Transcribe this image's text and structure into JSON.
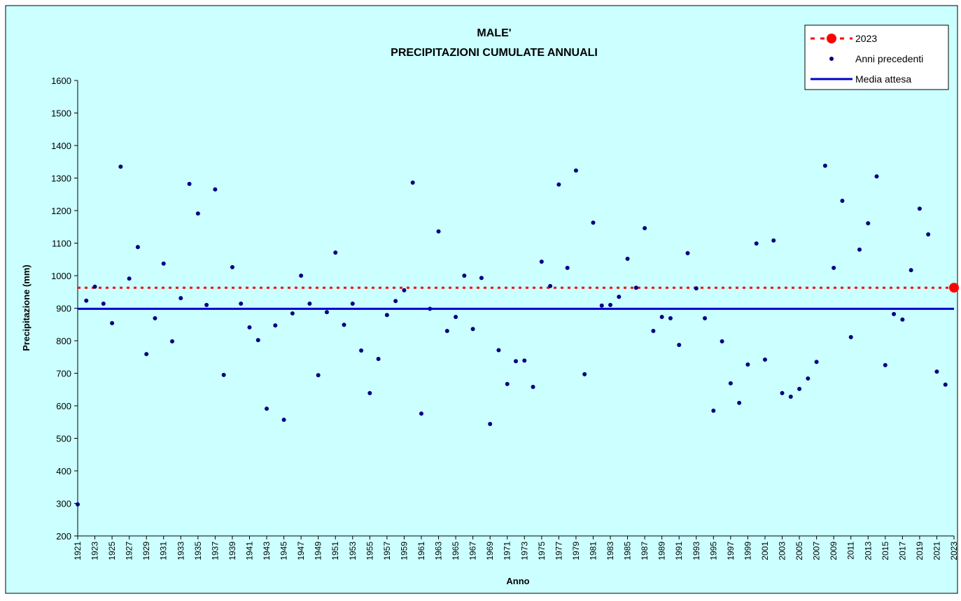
{
  "chart_data": {
    "type": "scatter",
    "title": [
      "MALE'",
      "PRECIPITAZIONI CUMULATE ANNUALI"
    ],
    "x_label": "Anno",
    "y_label": "Precipitazione (mm)",
    "xlim": [
      1921,
      2023
    ],
    "ylim": [
      200,
      1600
    ],
    "xticks": [
      1921,
      1923,
      1925,
      1927,
      1929,
      1931,
      1933,
      1935,
      1937,
      1939,
      1941,
      1943,
      1945,
      1947,
      1949,
      1951,
      1953,
      1955,
      1957,
      1959,
      1961,
      1963,
      1965,
      1967,
      1969,
      1971,
      1973,
      1975,
      1977,
      1979,
      1981,
      1983,
      1985,
      1987,
      1989,
      1991,
      1993,
      1995,
      1997,
      1999,
      2001,
      2003,
      2005,
      2007,
      2009,
      2011,
      2013,
      2015,
      2017,
      2019,
      2021,
      2023
    ],
    "yticks": [
      200,
      300,
      400,
      500,
      600,
      700,
      800,
      900,
      1000,
      1100,
      1200,
      1300,
      1400,
      1500,
      1600
    ],
    "grid": false,
    "legend": "top-right",
    "series": [
      {
        "name": "2023",
        "color": "#ff0000",
        "style": "point-dotted-line",
        "x": [
          2023
        ],
        "values": [
          963
        ]
      },
      {
        "name": "Anni precedenti",
        "color": "#000080",
        "style": "points",
        "x": [
          1921,
          1922,
          1923,
          1924,
          1925,
          1926,
          1927,
          1928,
          1929,
          1930,
          1931,
          1932,
          1933,
          1934,
          1935,
          1936,
          1937,
          1938,
          1939,
          1940,
          1941,
          1942,
          1943,
          1944,
          1945,
          1946,
          1947,
          1948,
          1949,
          1950,
          1951,
          1952,
          1953,
          1954,
          1955,
          1956,
          1957,
          1958,
          1959,
          1960,
          1961,
          1962,
          1963,
          1964,
          1965,
          1966,
          1967,
          1968,
          1969,
          1970,
          1971,
          1972,
          1973,
          1974,
          1975,
          1976,
          1977,
          1978,
          1979,
          1980,
          1981,
          1982,
          1983,
          1984,
          1985,
          1986,
          1987,
          1988,
          1989,
          1990,
          1991,
          1992,
          1993,
          1994,
          1995,
          1996,
          1997,
          1998,
          1999,
          2000,
          2001,
          2002,
          2003,
          2004,
          2005,
          2006,
          2007,
          2008,
          2009,
          2010,
          2011,
          2012,
          2013,
          2014,
          2015,
          2016,
          2017,
          2018,
          2019,
          2020,
          2021,
          2022
        ],
        "values": [
          297,
          923,
          966,
          914,
          854,
          1335,
          991,
          1088,
          759,
          869,
          1037,
          798,
          931,
          1282,
          1191,
          910,
          1265,
          695,
          1026,
          914,
          841,
          802,
          591,
          847,
          557,
          884,
          1000,
          914,
          694,
          888,
          1071,
          849,
          914,
          770,
          639,
          744,
          879,
          922,
          955,
          1286,
          576,
          898,
          1136,
          830,
          873,
          1000,
          836,
          993,
          544,
          771,
          667,
          737,
          739,
          658,
          1043,
          968,
          1280,
          1024,
          1323,
          697,
          1163,
          908,
          910,
          935,
          1052,
          963,
          1146,
          830,
          873,
          869,
          787,
          1069,
          961,
          869,
          585,
          798,
          669,
          609,
          727,
          1099,
          742,
          1108,
          639,
          628,
          652,
          684,
          735,
          1338,
          1024,
          1230,
          811,
          1080,
          1161,
          1305,
          725,
          882,
          865,
          1017,
          1206,
          1127,
          705,
          665
        ]
      },
      {
        "name": "Media attesa",
        "color": "#0000cc",
        "style": "horizontal-line",
        "values": [
          898
        ]
      }
    ]
  }
}
